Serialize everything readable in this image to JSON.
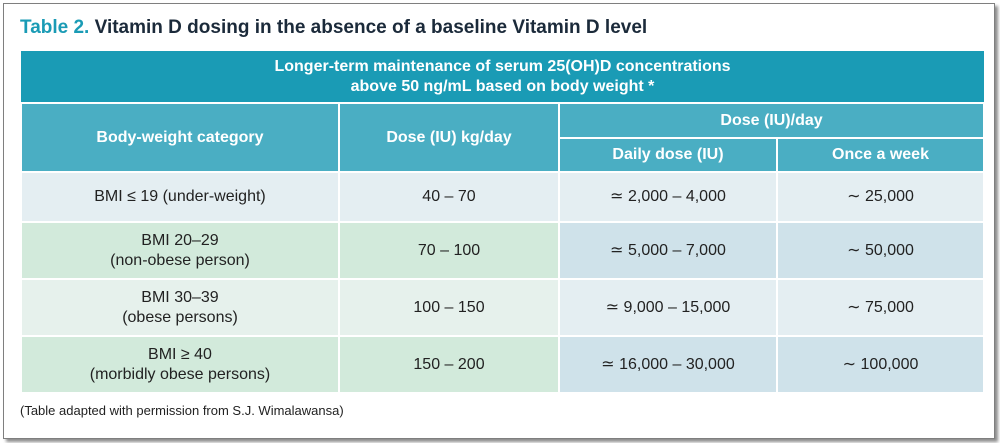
{
  "title": {
    "number": "Table 2.",
    "text": "Vitamin D dosing in the absence of a baseline Vitamin D level"
  },
  "table": {
    "banner_line1": "Longer-term maintenance of serum 25(OH)D concentrations",
    "banner_line2": "above 50 ng/mL based on body weight *",
    "headers": {
      "category": "Body-weight category",
      "dose_kg": "Dose (IU) kg/day",
      "dose_day": "Dose (IU)/day",
      "daily": "Daily dose (IU)",
      "weekly": "Once a week"
    },
    "rows": [
      {
        "cat1": "BMI ≤ 19 (under-weight)",
        "cat2": "",
        "dose_kg": "40 – 70",
        "daily": "≃ 2,000 – 4,000",
        "weekly": "∼ 25,000"
      },
      {
        "cat1": "BMI 20–29",
        "cat2": "(non-obese person)",
        "dose_kg": "70 – 100",
        "daily": "≃ 5,000 – 7,000",
        "weekly": "∼ 50,000"
      },
      {
        "cat1": "BMI 30–39",
        "cat2": "(obese persons)",
        "dose_kg": "100 – 150",
        "daily": "≃ 9,000 – 15,000",
        "weekly": "∼ 75,000"
      },
      {
        "cat1": "BMI ≥ 40",
        "cat2": "(morbidly obese persons)",
        "dose_kg": "150 – 200",
        "daily": "≃ 16,000 – 30,000",
        "weekly": "∼ 100,000"
      }
    ]
  },
  "footnote": "(Table adapted with permission from S.J. Wimalawansa)",
  "colors": {
    "accent": "#1a9bb5",
    "header": "#4aaec3",
    "row_blue": "#e4eef2",
    "row_green": "#d2eadb"
  }
}
